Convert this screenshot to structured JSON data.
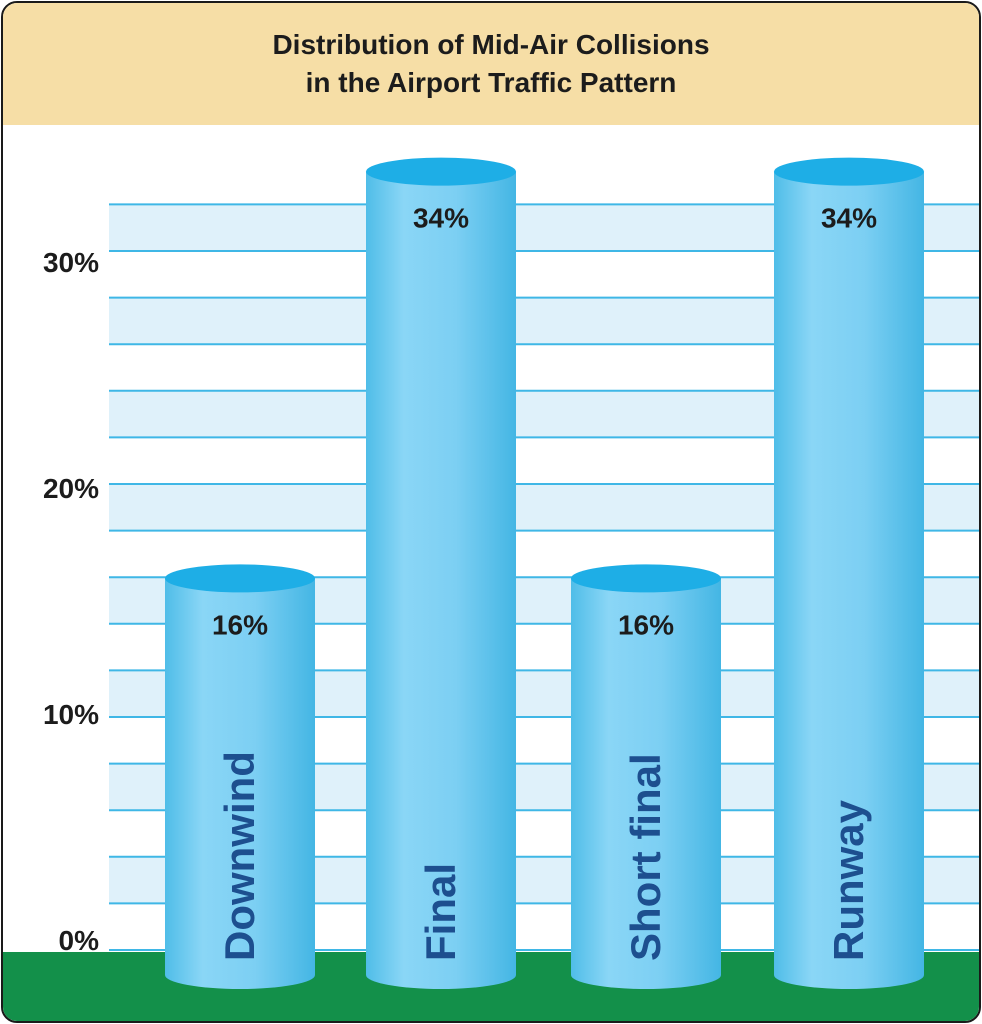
{
  "chart_data": {
    "type": "bar",
    "title": "Distribution of Mid-Air Collisions",
    "subtitle": "in the Airport Traffic Pattern",
    "categories": [
      "Downwind",
      "Final",
      "Short final",
      "Runway"
    ],
    "values": [
      16,
      34,
      16,
      34
    ],
    "value_labels": [
      "16%",
      "34%",
      "16%",
      "34%"
    ],
    "ylim": [
      0,
      35
    ],
    "yticks": [
      {
        "value": 0,
        "label": "0%"
      },
      {
        "value": 10,
        "label": "10%"
      },
      {
        "value": 20,
        "label": "20%"
      },
      {
        "value": 30,
        "label": "30%"
      }
    ],
    "grid": true,
    "legend": "none",
    "xlabel": "",
    "ylabel": ""
  },
  "colors": {
    "title_band": "#f6dea6",
    "band_light": "#dff1fa",
    "band_white": "#ffffff",
    "grid_line": "#3fb7e6",
    "ground": "#13904a",
    "bar_body": "#78cef3",
    "bar_top": "#1eaee6",
    "category_text": "#1d4f8f",
    "value_text": "#1c1c1c",
    "tick_text": "#1c1c1c"
  }
}
